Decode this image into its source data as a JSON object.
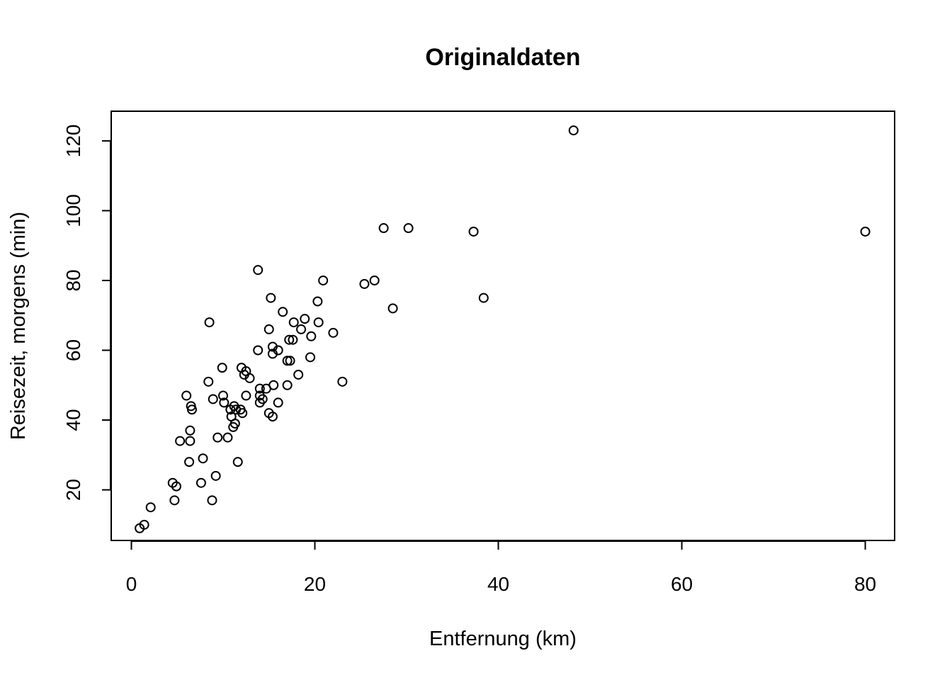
{
  "chart_data": {
    "type": "scatter",
    "title": "Originaldaten",
    "xlabel": "Entfernung (km)",
    "ylabel": "Reisezeit, morgens (min)",
    "xlim": [
      -2.2,
      83.2
    ],
    "ylim": [
      5.5,
      128.5
    ],
    "xticks": [
      0,
      20,
      40,
      60,
      80
    ],
    "yticks": [
      20,
      40,
      60,
      80,
      100,
      120
    ],
    "grid": false,
    "legend": "none",
    "points": [
      {
        "x": 0.9,
        "y": 9
      },
      {
        "x": 1.4,
        "y": 10
      },
      {
        "x": 2.1,
        "y": 15
      },
      {
        "x": 4.5,
        "y": 22
      },
      {
        "x": 4.9,
        "y": 21
      },
      {
        "x": 4.7,
        "y": 17
      },
      {
        "x": 5.3,
        "y": 34
      },
      {
        "x": 6.0,
        "y": 47
      },
      {
        "x": 6.3,
        "y": 28
      },
      {
        "x": 6.4,
        "y": 34
      },
      {
        "x": 6.4,
        "y": 37
      },
      {
        "x": 6.5,
        "y": 44
      },
      {
        "x": 6.6,
        "y": 43
      },
      {
        "x": 7.6,
        "y": 22
      },
      {
        "x": 7.8,
        "y": 29
      },
      {
        "x": 8.4,
        "y": 51
      },
      {
        "x": 8.5,
        "y": 68
      },
      {
        "x": 8.8,
        "y": 17
      },
      {
        "x": 8.9,
        "y": 46
      },
      {
        "x": 9.2,
        "y": 24
      },
      {
        "x": 9.4,
        "y": 35
      },
      {
        "x": 9.9,
        "y": 55
      },
      {
        "x": 10.0,
        "y": 47
      },
      {
        "x": 10.1,
        "y": 45
      },
      {
        "x": 10.5,
        "y": 35
      },
      {
        "x": 10.8,
        "y": 43
      },
      {
        "x": 10.9,
        "y": 41
      },
      {
        "x": 11.1,
        "y": 38
      },
      {
        "x": 11.2,
        "y": 44
      },
      {
        "x": 11.3,
        "y": 39
      },
      {
        "x": 11.4,
        "y": 43
      },
      {
        "x": 11.6,
        "y": 28
      },
      {
        "x": 11.9,
        "y": 43
      },
      {
        "x": 12.0,
        "y": 55
      },
      {
        "x": 12.1,
        "y": 42
      },
      {
        "x": 12.3,
        "y": 53
      },
      {
        "x": 12.5,
        "y": 54
      },
      {
        "x": 12.5,
        "y": 47
      },
      {
        "x": 12.9,
        "y": 52
      },
      {
        "x": 13.8,
        "y": 83
      },
      {
        "x": 13.8,
        "y": 60
      },
      {
        "x": 14.0,
        "y": 49
      },
      {
        "x": 14.0,
        "y": 47
      },
      {
        "x": 14.0,
        "y": 45
      },
      {
        "x": 14.3,
        "y": 46
      },
      {
        "x": 14.7,
        "y": 49
      },
      {
        "x": 15.0,
        "y": 66
      },
      {
        "x": 15.0,
        "y": 42
      },
      {
        "x": 15.2,
        "y": 75
      },
      {
        "x": 15.4,
        "y": 61
      },
      {
        "x": 15.4,
        "y": 59
      },
      {
        "x": 15.4,
        "y": 41
      },
      {
        "x": 15.5,
        "y": 50
      },
      {
        "x": 16.0,
        "y": 60
      },
      {
        "x": 16.0,
        "y": 45
      },
      {
        "x": 16.5,
        "y": 71
      },
      {
        "x": 17.0,
        "y": 57
      },
      {
        "x": 17.0,
        "y": 50
      },
      {
        "x": 17.2,
        "y": 63
      },
      {
        "x": 17.3,
        "y": 57
      },
      {
        "x": 17.6,
        "y": 63
      },
      {
        "x": 17.7,
        "y": 68
      },
      {
        "x": 18.2,
        "y": 53
      },
      {
        "x": 18.5,
        "y": 66
      },
      {
        "x": 18.9,
        "y": 69
      },
      {
        "x": 19.5,
        "y": 58
      },
      {
        "x": 19.6,
        "y": 64
      },
      {
        "x": 20.3,
        "y": 74
      },
      {
        "x": 20.4,
        "y": 68
      },
      {
        "x": 20.9,
        "y": 80
      },
      {
        "x": 22.0,
        "y": 65
      },
      {
        "x": 23.0,
        "y": 51
      },
      {
        "x": 25.4,
        "y": 79
      },
      {
        "x": 26.5,
        "y": 80
      },
      {
        "x": 27.5,
        "y": 95
      },
      {
        "x": 28.5,
        "y": 72
      },
      {
        "x": 30.2,
        "y": 95
      },
      {
        "x": 37.3,
        "y": 94
      },
      {
        "x": 38.4,
        "y": 75
      },
      {
        "x": 48.2,
        "y": 123
      },
      {
        "x": 80.0,
        "y": 94
      }
    ]
  }
}
